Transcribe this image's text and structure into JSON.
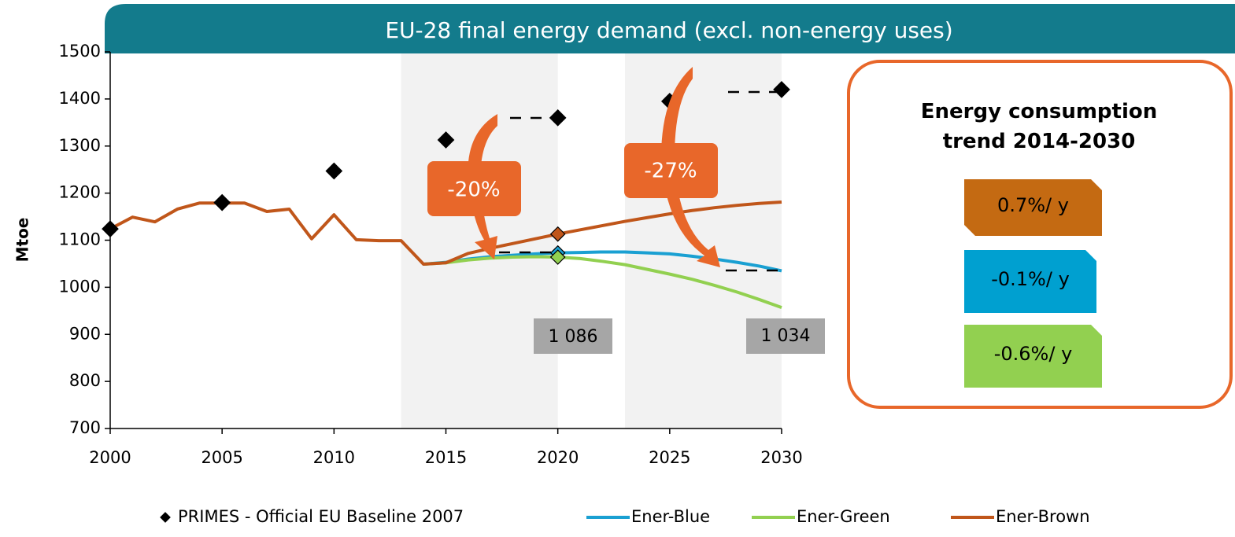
{
  "chart_data": {
    "type": "line",
    "title": "EU-28 final energy demand (excl. non-energy uses)",
    "y_label": "Mtoe",
    "x": [
      2000,
      2001,
      2002,
      2003,
      2004,
      2005,
      2006,
      2007,
      2008,
      2009,
      2010,
      2011,
      2012,
      2013,
      2014,
      2015,
      2016,
      2017,
      2018,
      2019,
      2020,
      2021,
      2022,
      2023,
      2024,
      2025,
      2026,
      2027,
      2028,
      2029,
      2030
    ],
    "xlim": [
      2000,
      2030
    ],
    "xticks": [
      2000,
      2005,
      2010,
      2015,
      2020,
      2025,
      2030
    ],
    "ylim": [
      700,
      1500
    ],
    "yticks": [
      700,
      800,
      900,
      1000,
      1100,
      1200,
      1300,
      1400,
      1500
    ],
    "bands": [
      [
        2013,
        2020
      ],
      [
        2023,
        2030
      ]
    ],
    "series": [
      {
        "name": "PRIMES - Official EU Baseline 2007",
        "type": "scatter",
        "color": "#000000",
        "x": [
          2000,
          2005,
          2010,
          2015,
          2020,
          2025,
          2030
        ],
        "values": [
          1124,
          1180,
          1247,
          1313,
          1360,
          1395,
          1420
        ]
      },
      {
        "name": "Ener-Blue",
        "color": "#1aa0d2",
        "marker_x": 2020,
        "values": [
          null,
          null,
          null,
          null,
          null,
          null,
          null,
          null,
          null,
          null,
          null,
          null,
          null,
          null,
          1049,
          1053,
          1060,
          1065,
          1068,
          1071,
          1073,
          1074,
          1075,
          1075,
          1073,
          1071,
          1066,
          1060,
          1053,
          1045,
          1035
        ]
      },
      {
        "name": "Ener-Green",
        "color": "#92d050",
        "marker_x": 2020,
        "values": [
          null,
          null,
          null,
          null,
          null,
          null,
          null,
          null,
          null,
          null,
          null,
          null,
          null,
          null,
          1049,
          1052,
          1058,
          1062,
          1064,
          1065,
          1064,
          1061,
          1055,
          1048,
          1038,
          1028,
          1017,
          1004,
          990,
          974,
          957
        ]
      },
      {
        "name": "Ener-Brown",
        "color": "#c0561a",
        "marker_x": 2020,
        "values": [
          1124,
          1149,
          1139,
          1166,
          1179,
          1179,
          1179,
          1161,
          1166,
          1103,
          1154,
          1101,
          1099,
          1099,
          1049,
          1052,
          1072,
          1083,
          1093,
          1103,
          1113,
          1122,
          1131,
          1140,
          1148,
          1156,
          1163,
          1169,
          1174,
          1178,
          1181
        ]
      }
    ],
    "annotations": [
      {
        "text": "-20%"
      },
      {
        "text": "-27%"
      },
      {
        "text": "1 086"
      },
      {
        "text": "1 034"
      }
    ],
    "side_panel": {
      "title": "Energy consumption trend 2014-2030",
      "items": [
        {
          "label": "0.7%/ y",
          "color": "#c46a12"
        },
        {
          "label": "-0.1%/ y",
          "color": "#00a0d0"
        },
        {
          "label": "-0.6%/ y",
          "color": "#92d050"
        }
      ]
    }
  }
}
